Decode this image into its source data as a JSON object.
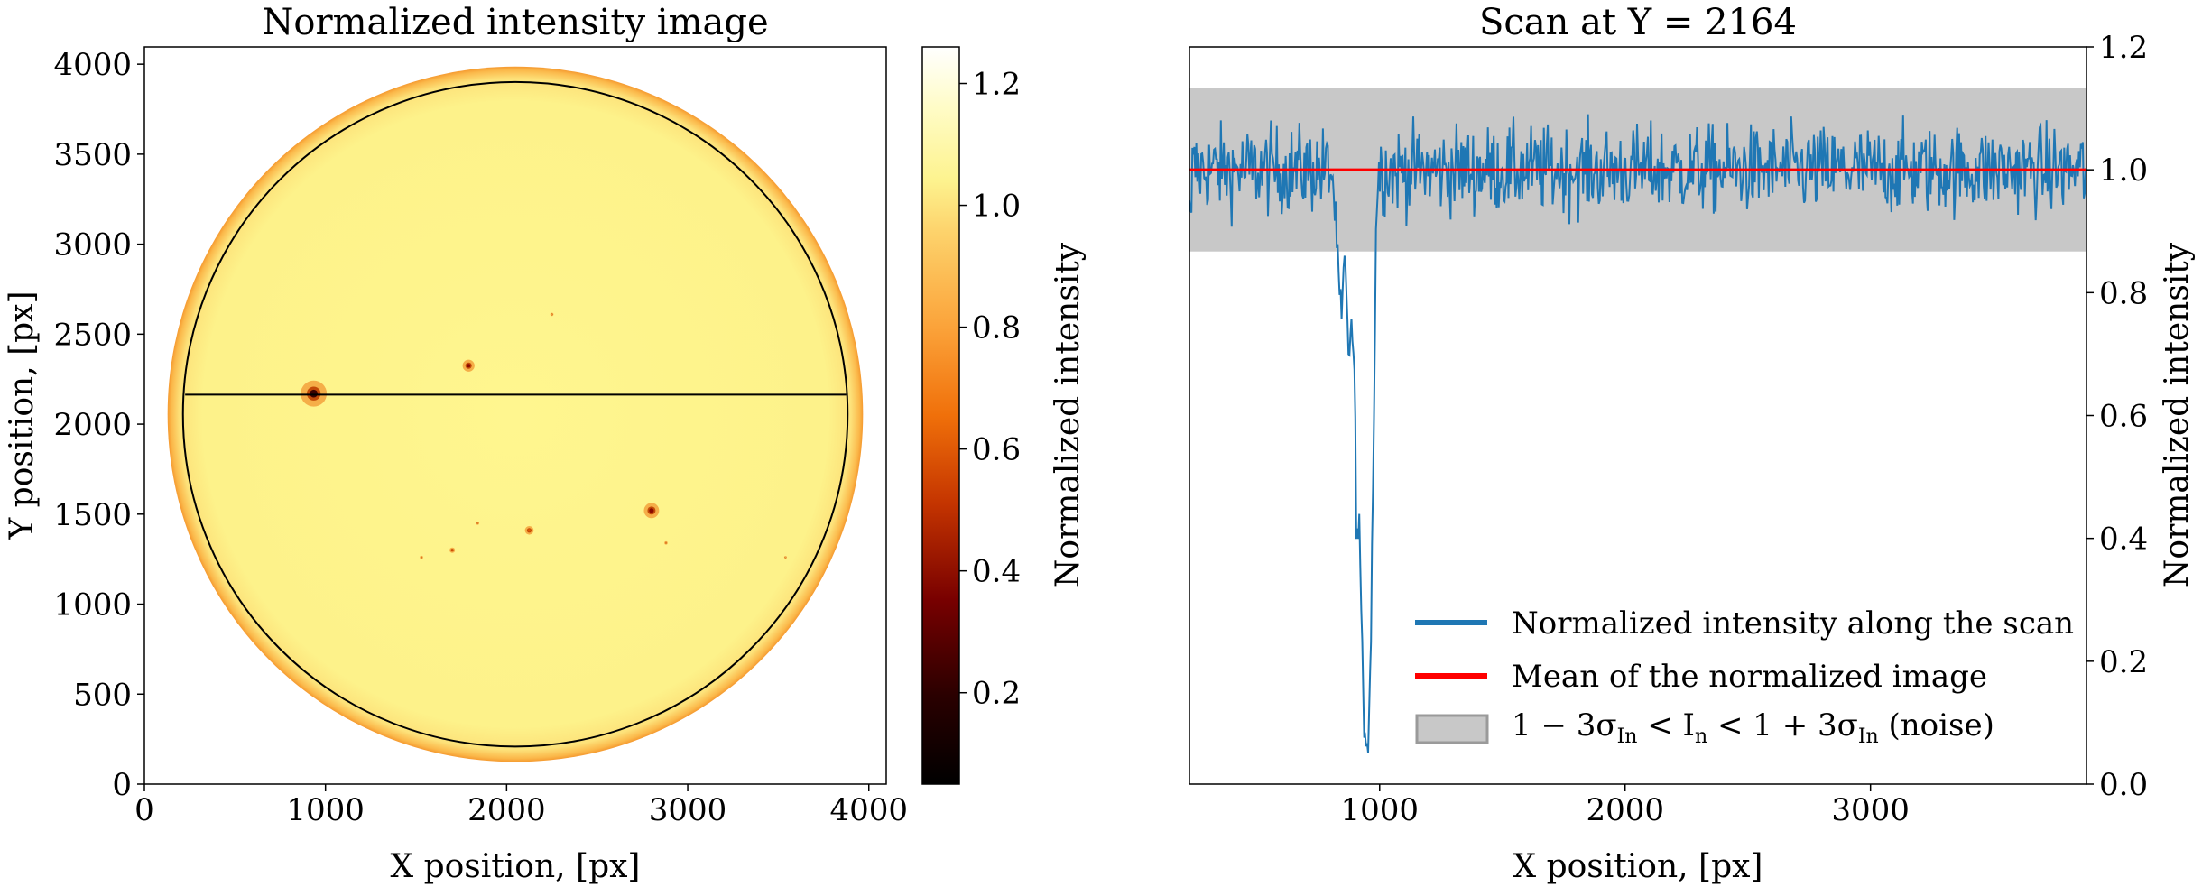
{
  "chart_data": [
    {
      "type": "heatmap",
      "title": "Normalized intensity image",
      "xlabel": "X position, [px]",
      "ylabel": "Y position, [px]",
      "xlim": [
        0,
        4096
      ],
      "ylim": [
        0,
        4096
      ],
      "x_ticks": [
        0,
        1000,
        2000,
        3000,
        4000
      ],
      "y_ticks": [
        0,
        500,
        1000,
        1500,
        2000,
        2500,
        3000,
        3500,
        4000
      ],
      "x_tick_labels": [
        "0",
        "1000",
        "2000",
        "3000",
        "4000"
      ],
      "y_tick_labels": [
        "0",
        "500",
        "1000",
        "1500",
        "2000",
        "2500",
        "3000",
        "3500",
        "4000"
      ],
      "colormap": "afmhot",
      "colorbar": {
        "label": "Normalized intensity",
        "range": [
          0.05,
          1.26
        ],
        "ticks": [
          0.2,
          0.4,
          0.6,
          0.8,
          1.0,
          1.2
        ],
        "tick_labels": [
          "0.2",
          "0.4",
          "0.6",
          "0.8",
          "1.0",
          "1.2"
        ]
      },
      "solar_disk": {
        "center": [
          2048,
          2055
        ],
        "radius": 1920,
        "limb_color": "#f6a33a",
        "disk_color": "#fdf58c"
      },
      "analysis_circle": {
        "center": [
          2048,
          2055
        ],
        "radius": 1835
      },
      "scan_line_y": 2164,
      "scan_line_x_range": [
        225,
        3875
      ],
      "sunspots": [
        {
          "x": 935,
          "y": 2170,
          "size": 48,
          "min_intensity": 0.1
        },
        {
          "x": 1790,
          "y": 2325,
          "size": 22,
          "min_intensity": 0.4
        },
        {
          "x": 2800,
          "y": 1520,
          "size": 28,
          "min_intensity": 0.3
        },
        {
          "x": 2125,
          "y": 1410,
          "size": 16,
          "min_intensity": 0.5
        },
        {
          "x": 1700,
          "y": 1300,
          "size": 10,
          "min_intensity": 0.6
        },
        {
          "x": 1530,
          "y": 1260,
          "size": 6,
          "min_intensity": 0.7
        },
        {
          "x": 1840,
          "y": 1450,
          "size": 6,
          "min_intensity": 0.7
        },
        {
          "x": 2250,
          "y": 2610,
          "size": 6,
          "min_intensity": 0.8
        },
        {
          "x": 2880,
          "y": 1340,
          "size": 6,
          "min_intensity": 0.8
        },
        {
          "x": 3540,
          "y": 1260,
          "size": 5,
          "min_intensity": 0.85
        }
      ],
      "grid": false
    },
    {
      "type": "line",
      "title": "Scan at Y = 2164",
      "xlabel": "X position, [px]",
      "ylabel": "Normalized intensity",
      "xlim": [
        225,
        3880
      ],
      "ylim": [
        0.0,
        1.2
      ],
      "x_ticks": [
        1000,
        2000,
        3000
      ],
      "y_ticks": [
        0.0,
        0.2,
        0.4,
        0.6,
        0.8,
        1.0,
        1.2
      ],
      "x_tick_labels": [
        "1000",
        "2000",
        "3000"
      ],
      "y_tick_labels": [
        "0.0",
        "0.2",
        "0.4",
        "0.6",
        "0.8",
        "1.0",
        "1.2"
      ],
      "y_axis_side": "right",
      "noise_band": {
        "low": 0.867,
        "high": 1.133,
        "color": "#c8c8c8"
      },
      "mean_level": 1.0,
      "scan_profile": {
        "base": 1.0,
        "noise_amplitude": 0.035,
        "x_start": 225,
        "x_end": 3880,
        "dip_points": [
          [
            225,
            0.95
          ],
          [
            230,
            0.93
          ],
          [
            800,
            1.0
          ],
          [
            810,
            0.98
          ],
          [
            825,
            0.88
          ],
          [
            835,
            0.8
          ],
          [
            845,
            0.75
          ],
          [
            855,
            0.85
          ],
          [
            865,
            0.8
          ],
          [
            875,
            0.7
          ],
          [
            880,
            0.72
          ],
          [
            890,
            0.74
          ],
          [
            900,
            0.6
          ],
          [
            905,
            0.45
          ],
          [
            912,
            0.38
          ],
          [
            918,
            0.44
          ],
          [
            925,
            0.25
          ],
          [
            935,
            0.12
          ],
          [
            945,
            0.07
          ],
          [
            955,
            0.09
          ],
          [
            965,
            0.25
          ],
          [
            975,
            0.55
          ],
          [
            985,
            0.9
          ],
          [
            995,
            1.0
          ]
        ]
      },
      "legend": {
        "position": "lower right",
        "entries": [
          {
            "label": "Normalized intensity along the scan",
            "color": "#1f77b4",
            "kind": "line"
          },
          {
            "label": "Mean of the normalized image",
            "color": "#ff0000",
            "kind": "line"
          },
          {
            "label": "noise_band",
            "color": "#c8c8c8",
            "kind": "patch"
          }
        ],
        "band_label_parts": {
          "prefix": "1 − 3σ",
          "sub": "In",
          "mid": " < I",
          "mid_sub": "n",
          "mid2": " < 1 + 3σ",
          "sub2": "In",
          "suffix": " (noise)"
        }
      },
      "grid": false
    }
  ]
}
